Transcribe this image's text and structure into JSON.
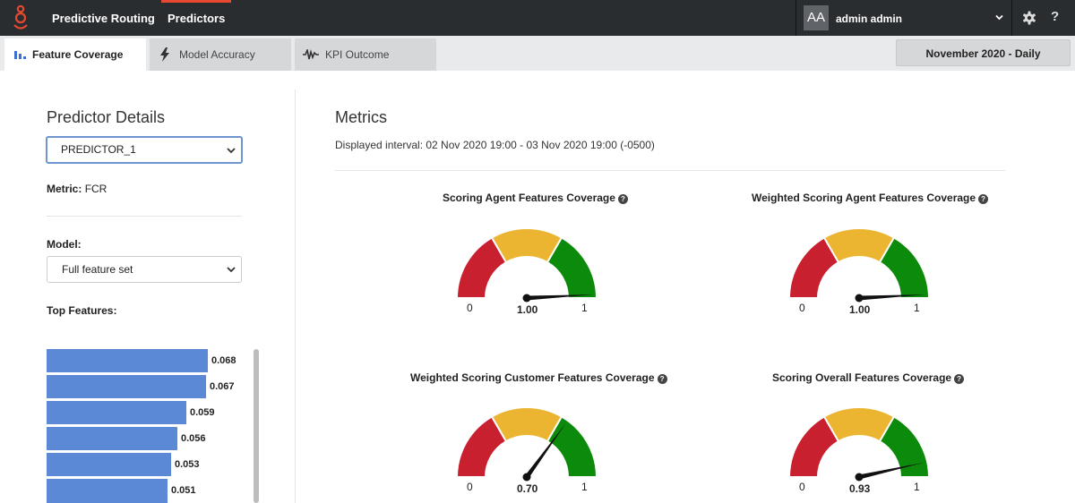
{
  "header": {
    "app_title": "Predictive Routing",
    "nav_predictors": "Predictors",
    "avatar_initials": "AA",
    "user_name": "admin admin",
    "help_label": "?"
  },
  "tabs": {
    "feature_coverage": "Feature Coverage",
    "model_accuracy": "Model Accuracy",
    "kpi_outcome": "KPI Outcome",
    "date_range": "November 2020 - Daily"
  },
  "left": {
    "title": "Predictor Details",
    "predictor_value": "PREDICTOR_1",
    "metric_label": "Metric:",
    "metric_value": "FCR",
    "model_label": "Model:",
    "model_value": "Full feature set",
    "top_features_label": "Top Features:",
    "feature_values": [
      "0.068",
      "0.067",
      "0.059",
      "0.056",
      "0.053",
      "0.051"
    ]
  },
  "metrics": {
    "title": "Metrics",
    "interval": "Displayed interval: 02 Nov 2020 19:00 - 03 Nov 2020 19:00 (-0500)",
    "gauges": [
      {
        "title": "Scoring Agent Features Coverage",
        "min": "0",
        "max": "1",
        "value_label": "1.00",
        "value": 1.0
      },
      {
        "title": "Weighted Scoring Agent Features Coverage",
        "min": "0",
        "max": "1",
        "value_label": "1.00",
        "value": 1.0
      },
      {
        "title": "Weighted Scoring Customer Features Coverage",
        "min": "0",
        "max": "1",
        "value_label": "0.70",
        "value": 0.7
      },
      {
        "title": "Scoring Overall Features Coverage",
        "min": "0",
        "max": "1",
        "value_label": "0.93",
        "value": 0.93
      }
    ]
  },
  "colors": {
    "gauge_red": "#c8202f",
    "gauge_yellow": "#ebb531",
    "gauge_green": "#0b8a0b",
    "bar_blue": "#5b89d6",
    "accent_orange": "#e5492f"
  }
}
